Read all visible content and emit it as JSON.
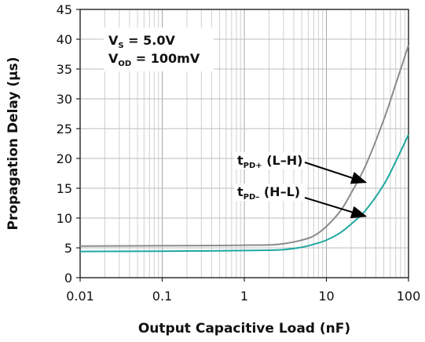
{
  "chart_data": {
    "type": "line",
    "xscale": "log",
    "xlim": [
      0.01,
      100
    ],
    "ylim": [
      0,
      45
    ],
    "xticks": [
      "0.01",
      "0.1",
      "1",
      "10",
      "100"
    ],
    "yticks": [
      "0",
      "5",
      "10",
      "15",
      "20",
      "25",
      "30",
      "35",
      "40",
      "45"
    ],
    "xlabel": "Output Capacitive Load (nF)",
    "ylabel": "Propagation Delay (µs)",
    "grid": true,
    "conditions": [
      {
        "main": "V",
        "sub": "S",
        "rest": " = 5.0V"
      },
      {
        "main": "V",
        "sub": "OD",
        "rest": " = 100mV"
      }
    ],
    "series": [
      {
        "name": "tPD+ (L–H)",
        "label_main": "t",
        "label_sub": "PD+",
        "label_rest": " (L–H)",
        "color": "#8c8c8c",
        "x": [
          0.01,
          0.1,
          0.5,
          1,
          2,
          3,
          5,
          7,
          10,
          15,
          20,
          30,
          50,
          70,
          100
        ],
        "y": [
          5.3,
          5.35,
          5.4,
          5.45,
          5.5,
          5.7,
          6.3,
          7.0,
          8.6,
          11.3,
          14.2,
          18.8,
          26.5,
          32.5,
          39
        ]
      },
      {
        "name": "tPD– (H–L)",
        "label_main": "t",
        "label_sub": "PD–",
        "label_rest": " (H–L)",
        "color": "#1fa8a0",
        "x": [
          0.01,
          0.1,
          0.5,
          1,
          2,
          3,
          5,
          7,
          10,
          15,
          20,
          30,
          50,
          70,
          100
        ],
        "y": [
          4.4,
          4.45,
          4.5,
          4.55,
          4.6,
          4.7,
          5.1,
          5.6,
          6.3,
          7.6,
          9.0,
          11.3,
          15.6,
          19.5,
          24
        ]
      }
    ]
  }
}
